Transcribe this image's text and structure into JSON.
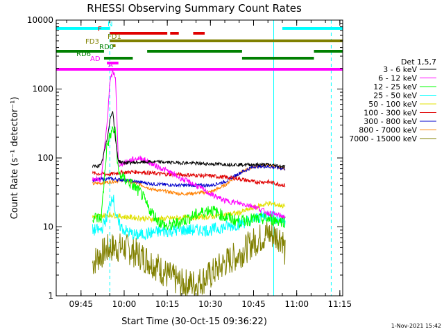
{
  "chart_data": {
    "type": "line",
    "title": "RHESSI Observing Summary Count Rates",
    "xlabel": "Start Time (30-Oct-15 09:36:22)",
    "ylabel": "Count Rate (s⁻¹ detector⁻¹)",
    "yscale": "log",
    "ylim": [
      1,
      10000
    ],
    "xlim": [
      "09:36:22",
      "11:16"
    ],
    "x_ticks": [
      "09:45",
      "10:00",
      "10:15",
      "10:30",
      "10:45",
      "11:00",
      "11:15"
    ],
    "y_ticks": [
      "1",
      "10",
      "100",
      "1000",
      "10000"
    ],
    "legend_title": "Det 1,5,7",
    "legend_placement": "right",
    "timestamp": "1-Nov-2021 15:42",
    "flags": [
      {
        "label": "N",
        "color": "#00ffff",
        "segments": [
          [
            "09:36:22",
            "09:55"
          ],
          [
            "10:55",
            "11:16"
          ]
        ]
      },
      {
        "label": "F",
        "color": "#e00000",
        "segments": [
          [
            "09:55",
            "10:15"
          ],
          [
            "10:16",
            "10:19"
          ],
          [
            "10:24",
            "10:28"
          ]
        ]
      },
      {
        "label": "FD1",
        "color": "#808000",
        "segments": [
          [
            "09:55",
            "11:16"
          ]
        ]
      },
      {
        "label": "FD3",
        "color": "#808000",
        "segments": [
          [
            "09:56",
            "09:57"
          ]
        ]
      },
      {
        "label": "RD0",
        "color": "#008000",
        "segments": [
          [
            "09:36:22",
            "09:53"
          ],
          [
            "10:08",
            "10:41"
          ],
          [
            "11:06",
            "11:16"
          ]
        ]
      },
      {
        "label": "RD6",
        "color": "#008000",
        "segments": [
          [
            "09:53",
            "10:03"
          ],
          [
            "10:41",
            "11:06"
          ]
        ]
      },
      {
        "label": "AD",
        "color": "#ff00ff",
        "segments": [
          [
            "09:54",
            "09:58"
          ]
        ]
      },
      {
        "label": "A",
        "color": "#ff00ff",
        "segments": [
          [
            "09:36:22",
            "11:16"
          ]
        ]
      }
    ],
    "vlines": [
      {
        "time": "09:55",
        "color": "#00ffff",
        "style": "dashed"
      },
      {
        "time": "10:52",
        "color": "#00ffff",
        "style": "solid"
      },
      {
        "time": "11:12",
        "color": "#00ffff",
        "style": "dashed"
      }
    ],
    "data_span": [
      "09:49",
      "10:56"
    ],
    "series": [
      {
        "name": "3 - 6 keV",
        "color": "#000000",
        "x": [
          "09:49",
          "09:52",
          "09:54",
          "09:55",
          "09:56",
          "09:57",
          "09:58",
          "10:00",
          "10:10",
          "10:20",
          "10:30",
          "10:40",
          "10:50",
          "10:56"
        ],
        "y": [
          75,
          78,
          180,
          350,
          500,
          180,
          90,
          85,
          88,
          85,
          82,
          80,
          80,
          75
        ]
      },
      {
        "name": "6 - 12 keV",
        "color": "#ff00ff",
        "x": [
          "09:49",
          "09:52",
          "09:54",
          "09:55",
          "09:56",
          "09:57",
          "09:58",
          "10:00",
          "10:03",
          "10:06",
          "10:10",
          "10:15",
          "10:20",
          "10:25",
          "10:30",
          "10:35",
          "10:40",
          "10:45",
          "10:50",
          "10:56"
        ],
        "y": [
          50,
          48,
          300,
          1200,
          1800,
          1500,
          80,
          85,
          95,
          100,
          80,
          65,
          50,
          40,
          30,
          24,
          22,
          20,
          16,
          14
        ]
      },
      {
        "name": "12 - 25 keV",
        "color": "#00ff00",
        "x": [
          "09:49",
          "09:52",
          "09:54",
          "09:55",
          "09:56",
          "09:57",
          "09:58",
          "10:00",
          "10:03",
          "10:06",
          "10:08",
          "10:12",
          "10:15",
          "10:20",
          "10:25",
          "10:30",
          "10:35",
          "10:40",
          "10:45",
          "10:50",
          "10:56"
        ],
        "y": [
          14,
          13,
          150,
          200,
          260,
          230,
          60,
          50,
          40,
          30,
          20,
          12,
          10,
          12,
          15,
          18,
          14,
          12,
          13,
          13,
          12
        ]
      },
      {
        "name": "25 - 50 keV",
        "color": "#00ffff",
        "x": [
          "09:49",
          "09:52",
          "09:54",
          "09:56",
          "09:57",
          "09:58",
          "10:00",
          "10:04",
          "10:08",
          "10:12",
          "10:20",
          "10:30",
          "10:40",
          "10:50",
          "10:56"
        ],
        "y": [
          9,
          9,
          14,
          30,
          16,
          11,
          9,
          7.5,
          8,
          8.5,
          9,
          9,
          11,
          15,
          12
        ]
      },
      {
        "name": "50 - 100 keV",
        "color": "#e0e000",
        "x": [
          "09:49",
          "09:55",
          "10:00",
          "10:10",
          "10:20",
          "10:30",
          "10:40",
          "10:45",
          "10:50",
          "10:56"
        ],
        "y": [
          14,
          15,
          14,
          13,
          13.5,
          14,
          16,
          19,
          22,
          20
        ]
      },
      {
        "name": "100 - 300 keV",
        "color": "#e00000",
        "x": [
          "09:49",
          "09:55",
          "10:00",
          "10:05",
          "10:10",
          "10:15",
          "10:20",
          "10:30",
          "10:40",
          "10:45",
          "10:50",
          "10:56"
        ],
        "y": [
          60,
          58,
          62,
          63,
          60,
          58,
          57,
          55,
          50,
          45,
          45,
          40
        ]
      },
      {
        "name": "300 - 800 keV",
        "color": "#0000cc",
        "x": [
          "09:49",
          "09:55",
          "10:00",
          "10:10",
          "10:20",
          "10:30",
          "10:35",
          "10:40",
          "10:45",
          "10:50",
          "10:56"
        ],
        "y": [
          48,
          50,
          48,
          42,
          40,
          40,
          45,
          60,
          75,
          75,
          70
        ]
      },
      {
        "name": "800 - 7000 keV",
        "color": "#ff8000",
        "x": [
          "09:49",
          "09:55",
          "10:00",
          "10:05",
          "10:10",
          "10:20",
          "10:30",
          "10:35",
          "10:40",
          "10:45",
          "10:50",
          "10:56"
        ],
        "y": [
          42,
          45,
          48,
          42,
          35,
          30,
          32,
          40,
          60,
          75,
          78,
          70
        ]
      },
      {
        "name": "7000 - 15000 keV",
        "color": "#808000",
        "x": [
          "09:49",
          "09:52",
          "09:55",
          "10:00",
          "10:05",
          "10:10",
          "10:15",
          "10:20",
          "10:25",
          "10:30",
          "10:35",
          "10:40",
          "10:45",
          "10:50",
          "10:55",
          "10:56"
        ],
        "y": [
          3,
          4,
          5,
          5,
          4,
          3,
          2,
          1.5,
          1.5,
          2,
          3,
          4,
          6,
          8,
          7,
          4
        ]
      }
    ]
  }
}
